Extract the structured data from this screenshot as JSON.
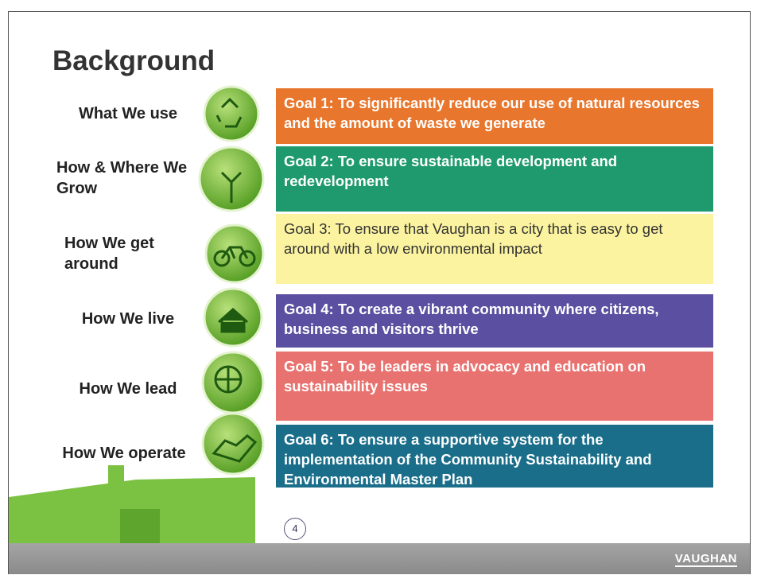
{
  "title": "Background",
  "rows": [
    {
      "label": "What We use",
      "goal": "Goal 1: To significantly reduce our use of natural resources and the amount of waste we generate"
    },
    {
      "label": "How & Where We Grow",
      "goal": "Goal 2: To ensure sustainable development and redevelopment"
    },
    {
      "label": "How We get around",
      "goal": "Goal 3: To ensure that Vaughan is a city that is easy to get around with a low environmental impact"
    },
    {
      "label": "How We live",
      "goal": "Goal 4: To create a vibrant community where citizens, business and visitors thrive"
    },
    {
      "label": "How We lead",
      "goal": "Goal 5: To be leaders in advocacy and education on sustainability issues"
    },
    {
      "label": "How We operate",
      "goal": "Goal 6: To ensure a supportive system for the implementation of the Community Sustainability and Environmental Master Plan"
    }
  ],
  "page_number": "4",
  "logo": "VAUGHAN"
}
